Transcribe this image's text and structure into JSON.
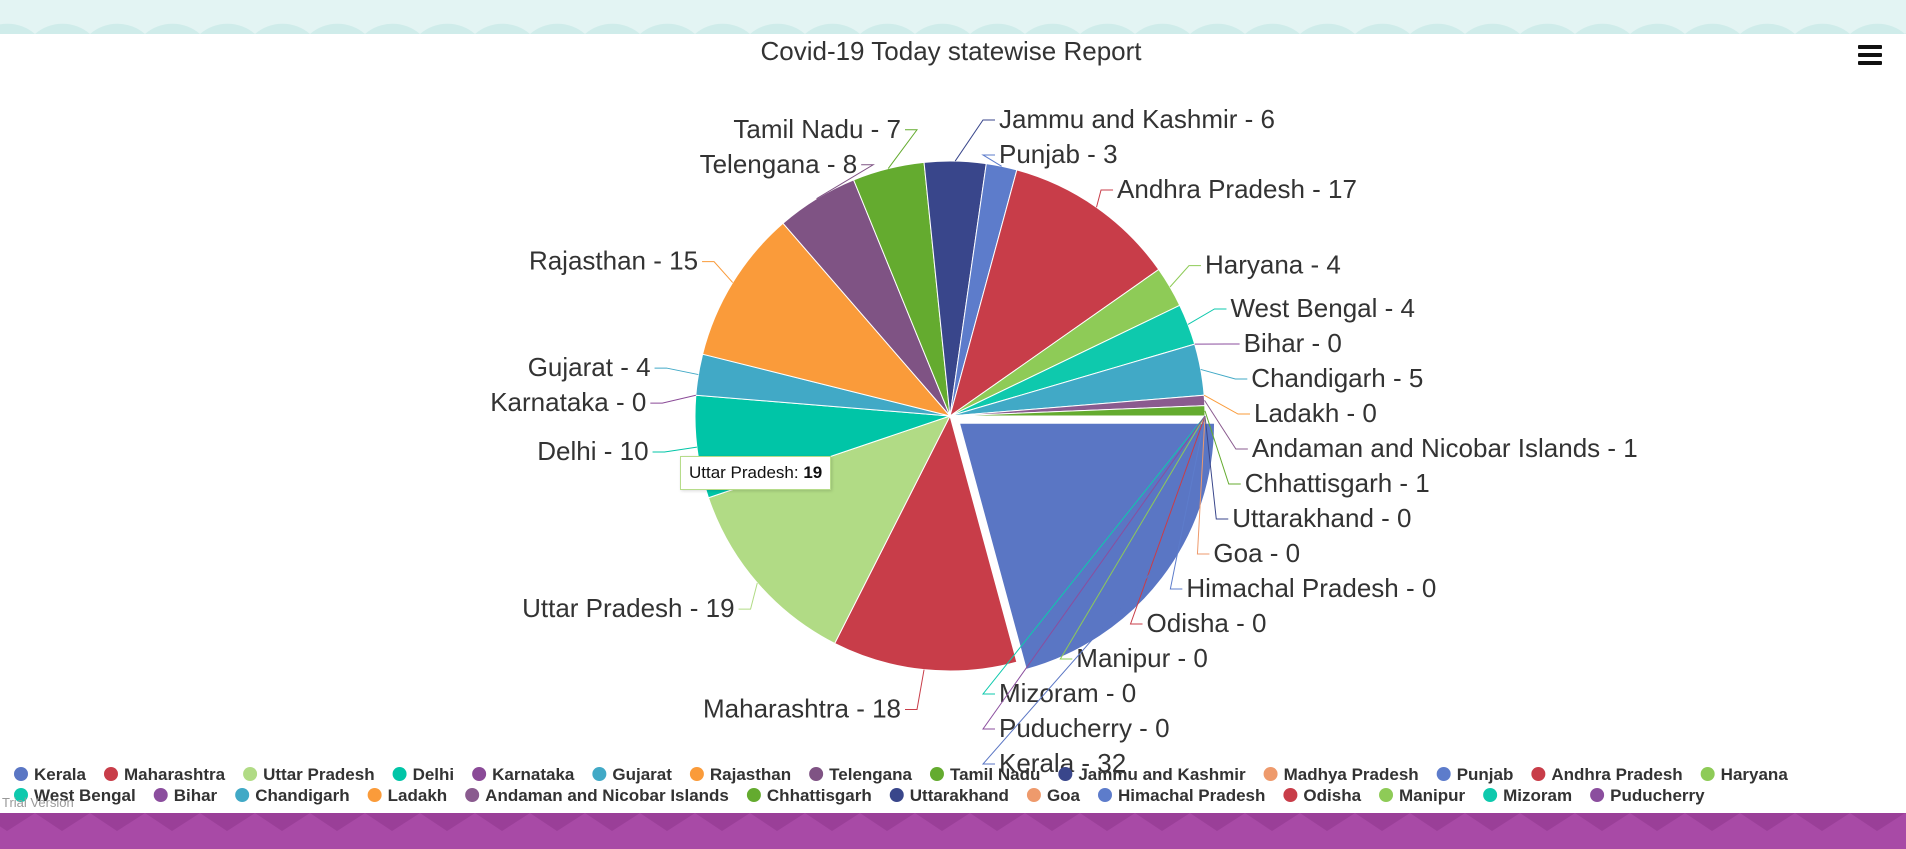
{
  "colors": {
    "top_band": "#e3f4f3",
    "top_band_arc": "#cfecea",
    "bottom_band": "#a84aa6",
    "bottom_band_arc": "#9a3f98"
  },
  "menu_icon": "hamburger-icon",
  "tooltip": {
    "label": "Uttar Pradesh:",
    "value": "19"
  },
  "credit": "Trial Version",
  "chart_data": {
    "type": "pie",
    "title": "Covid-19 Today statewise Report",
    "legend": "bottom",
    "sliced": "Kerala",
    "slices": [
      {
        "name": "Kerala",
        "value": 32,
        "color": "#5a76c4"
      },
      {
        "name": "Maharashtra",
        "value": 18,
        "color": "#c83d49"
      },
      {
        "name": "Uttar Pradesh",
        "value": 19,
        "color": "#b1db85"
      },
      {
        "name": "Delhi",
        "value": 10,
        "color": "#00c5a7"
      },
      {
        "name": "Karnataka",
        "value": 0,
        "color": "#8a4a97"
      },
      {
        "name": "Gujarat",
        "value": 4,
        "color": "#41a9c6"
      },
      {
        "name": "Rajasthan",
        "value": 15,
        "color": "#fa9b3a"
      },
      {
        "name": "Telengana",
        "value": 8,
        "color": "#7f5384"
      },
      {
        "name": "Tamil Nadu",
        "value": 7,
        "color": "#64ab2f"
      },
      {
        "name": "Jammu and Kashmir",
        "value": 6,
        "color": "#39468b"
      },
      {
        "name": "Madhya Pradesh",
        "value": 0,
        "color": "#ee9a6c"
      },
      {
        "name": "Punjab",
        "value": 3,
        "color": "#5d7ccb"
      },
      {
        "name": "Andhra Pradesh",
        "value": 17,
        "color": "#c83d49"
      },
      {
        "name": "Haryana",
        "value": 4,
        "color": "#8ecb57"
      },
      {
        "name": "West Bengal",
        "value": 4,
        "color": "#0ec9ad"
      },
      {
        "name": "Bihar",
        "value": 0,
        "color": "#8b4e9e"
      },
      {
        "name": "Chandigarh",
        "value": 5,
        "color": "#41a9c6"
      },
      {
        "name": "Ladakh",
        "value": 0,
        "color": "#fa9b3a"
      },
      {
        "name": "Andaman and Nicobar Islands",
        "value": 1,
        "color": "#8a5b8f"
      },
      {
        "name": "Chhattisgarh",
        "value": 1,
        "color": "#64ab2f"
      },
      {
        "name": "Uttarakhand",
        "value": 0,
        "color": "#39468b"
      },
      {
        "name": "Goa",
        "value": 0,
        "color": "#ee9a6c"
      },
      {
        "name": "Himachal Pradesh",
        "value": 0,
        "color": "#5d7ccb"
      },
      {
        "name": "Odisha",
        "value": 0,
        "color": "#c83d49"
      },
      {
        "name": "Manipur",
        "value": 0,
        "color": "#8ecb57"
      },
      {
        "name": "Mizoram",
        "value": 0,
        "color": "#0ec9ad"
      },
      {
        "name": "Puducherry",
        "value": 0,
        "color": "#8b4e9e"
      }
    ],
    "data_labels": [
      {
        "state": "Kerala",
        "text": "Kerala - 32"
      },
      {
        "state": "Maharashtra",
        "text": "Maharashtra - 18"
      },
      {
        "state": "Uttar Pradesh",
        "text": "Uttar Pradesh - 19"
      },
      {
        "state": "Delhi",
        "text": "Delhi - 10"
      },
      {
        "state": "Karnataka",
        "text": "Karnataka - 0"
      },
      {
        "state": "Gujarat",
        "text": "Gujarat - 4"
      },
      {
        "state": "Rajasthan",
        "text": "Rajasthan - 15"
      },
      {
        "state": "Telengana",
        "text": "Telengana - 8"
      },
      {
        "state": "Tamil Nadu",
        "text": "Tamil Nadu - 7"
      },
      {
        "state": "Jammu and Kashmir",
        "text": "Jammu and Kashmir - 6"
      },
      {
        "state": "Punjab",
        "text": "Punjab - 3"
      },
      {
        "state": "Andhra Pradesh",
        "text": "Andhra Pradesh - 17"
      },
      {
        "state": "Haryana",
        "text": "Haryana - 4"
      },
      {
        "state": "West Bengal",
        "text": "West Bengal - 4"
      },
      {
        "state": "Bihar",
        "text": "Bihar - 0"
      },
      {
        "state": "Chandigarh",
        "text": "Chandigarh - 5"
      },
      {
        "state": "Ladakh",
        "text": "Ladakh - 0"
      },
      {
        "state": "Andaman and Nicobar Islands",
        "text": "Andaman and Nicobar Islands - 1"
      },
      {
        "state": "Chhattisgarh",
        "text": "Chhattisgarh - 1"
      },
      {
        "state": "Uttarakhand",
        "text": "Uttarakhand - 0"
      },
      {
        "state": "Goa",
        "text": "Goa - 0"
      },
      {
        "state": "Himachal Pradesh",
        "text": "Himachal Pradesh - 0"
      },
      {
        "state": "Odisha",
        "text": "Odisha - 0"
      },
      {
        "state": "Manipur",
        "text": "Manipur - 0"
      },
      {
        "state": "Mizoram",
        "text": "Mizoram - 0"
      },
      {
        "state": "Puducherry",
        "text": "Puducherry - 0"
      }
    ]
  }
}
